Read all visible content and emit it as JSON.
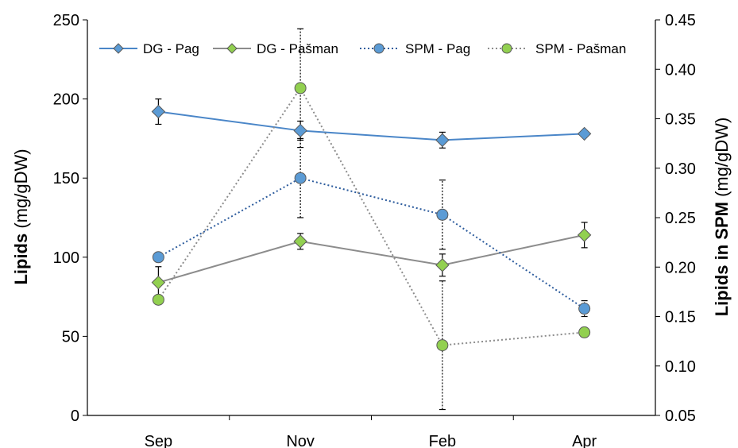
{
  "chart_data": {
    "type": "line",
    "categories": [
      "Sep",
      "Nov",
      "Feb",
      "Apr"
    ],
    "y_left": {
      "label_bold": "Lipids",
      "label_rest": " (mg/gDW)",
      "ylim": [
        0,
        250
      ],
      "ticks": [
        0,
        50,
        100,
        150,
        200,
        250
      ]
    },
    "y_right": {
      "label_bold": "Lipids in SPM",
      "label_rest": " (mg/gDW)",
      "ylim": [
        0.05,
        0.45
      ],
      "ticks": [
        "0.05",
        "0.10",
        "0.15",
        "0.20",
        "0.25",
        "0.30",
        "0.35",
        "0.40",
        "0.45"
      ]
    },
    "legend_position": "top",
    "grid": false,
    "series": [
      {
        "name": "DG - Pag",
        "axis": "left",
        "values": [
          192,
          180,
          174,
          178
        ],
        "error": [
          8,
          6,
          5,
          0
        ],
        "marker": "diamond",
        "color": "#4a86c8",
        "fill": "#5b9bd5",
        "line_style": "solid"
      },
      {
        "name": "DG - Pašman",
        "axis": "left",
        "values": [
          84,
          110,
          95,
          114
        ],
        "error": [
          10,
          5,
          7,
          8
        ],
        "marker": "diamond",
        "color": "#8c8c8c",
        "fill": "#92d050",
        "line_style": "solid"
      },
      {
        "name": "SPM - Pag",
        "axis": "right",
        "values": [
          0.21,
          0.29,
          0.253,
          0.158
        ],
        "error": [
          0,
          0.04,
          0.035,
          0.008
        ],
        "marker": "circle",
        "color": "#2e5d9e",
        "fill": "#5b9bd5",
        "line_style": "dotted"
      },
      {
        "name": "SPM - Pašman",
        "axis": "right",
        "values": [
          0.167,
          0.381,
          0.121,
          0.134
        ],
        "error": [
          0,
          0.06,
          0.065,
          0
        ],
        "marker": "circle",
        "color": "#8c8c8c",
        "fill": "#92d050",
        "line_style": "dotted"
      }
    ]
  }
}
